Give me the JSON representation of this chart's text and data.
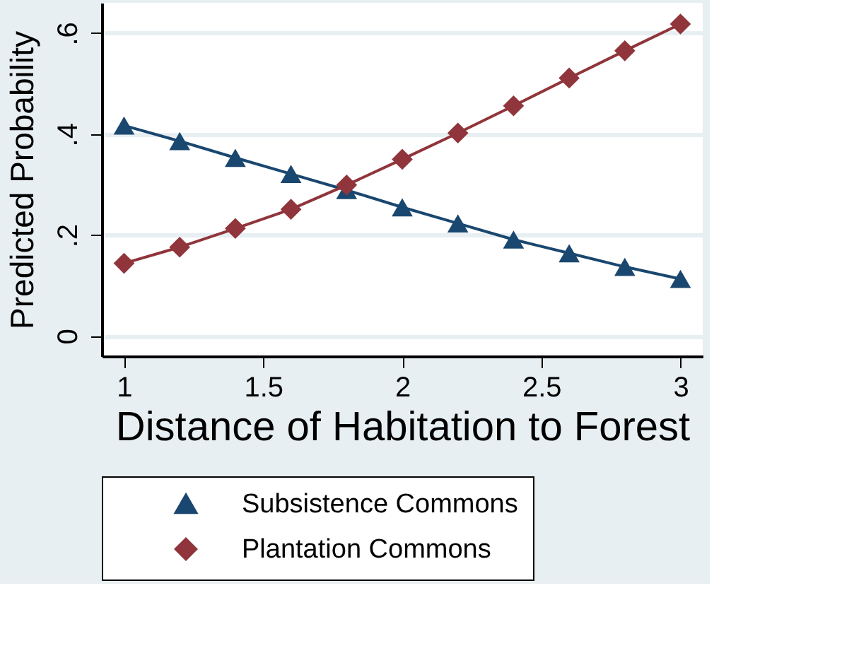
{
  "chart_data": {
    "type": "line",
    "xlabel": "Distance of Habitation to Forest",
    "ylabel": "Predicted Probability",
    "x": [
      1,
      1.2,
      1.4,
      1.6,
      1.8,
      2,
      2.2,
      2.4,
      2.6,
      2.8,
      3
    ],
    "series": [
      {
        "name": "Subsistence Commons",
        "color": "#1a476f",
        "marker": "triangle",
        "values": [
          0.417,
          0.386,
          0.353,
          0.321,
          0.289,
          0.255,
          0.223,
          0.191,
          0.164,
          0.137,
          0.113
        ]
      },
      {
        "name": "Plantation Commons",
        "color": "#90353b",
        "marker": "diamond",
        "values": [
          0.144,
          0.176,
          0.213,
          0.251,
          0.299,
          0.35,
          0.402,
          0.456,
          0.511,
          0.565,
          0.618
        ]
      }
    ],
    "xlim": [
      0.92,
      3.08
    ],
    "xticks": [
      1,
      1.5,
      2,
      2.5,
      3
    ],
    "ylim": [
      -0.04,
      0.66
    ],
    "yticks": [
      0,
      {
        "value": 0.2,
        "label": ".2"
      },
      {
        "value": 0.4,
        "label": ".4"
      },
      {
        "value": 0.6,
        "label": ".6"
      }
    ],
    "grid": "y",
    "legend": "bottom",
    "line_style": "solid"
  }
}
